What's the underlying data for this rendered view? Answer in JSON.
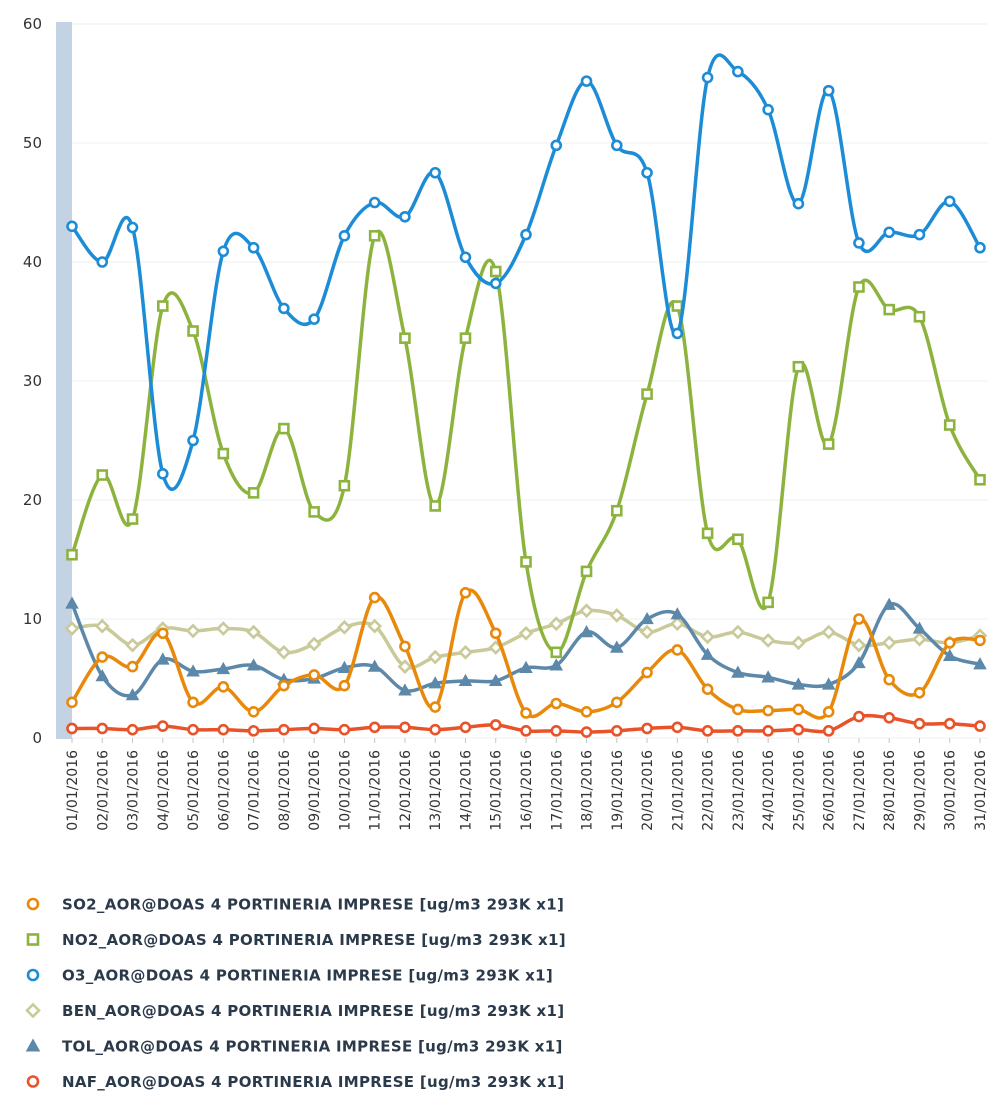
{
  "chart_data": {
    "type": "line",
    "title": "",
    "xlabel": "",
    "ylabel": "",
    "ylim": [
      0,
      60
    ],
    "yticks": [
      "0",
      "10",
      "20",
      "30",
      "40",
      "50",
      "60"
    ],
    "grid": "horizontal",
    "legend_position": "bottom",
    "categories": [
      "01/01/2016",
      "02/01/2016",
      "03/01/2016",
      "04/01/2016",
      "05/01/2016",
      "06/01/2016",
      "07/01/2016",
      "08/01/2016",
      "09/01/2016",
      "10/01/2016",
      "11/01/2016",
      "12/01/2016",
      "13/01/2016",
      "14/01/2016",
      "15/01/2016",
      "16/01/2016",
      "17/01/2016",
      "18/01/2016",
      "19/01/2016",
      "20/01/2016",
      "21/01/2016",
      "22/01/2016",
      "23/01/2016",
      "24/01/2016",
      "25/01/2016",
      "26/01/2016",
      "27/01/2016",
      "28/01/2016",
      "29/01/2016",
      "30/01/2016",
      "31/01/2016"
    ],
    "series": [
      {
        "name": "SO2_AOR@DOAS 4 PORTINERIA IMPRESE [ug/m3 293K x1]",
        "color": "#e8890c",
        "marker": "circle",
        "values": [
          3.0,
          6.8,
          6.0,
          8.8,
          3.0,
          4.3,
          2.2,
          4.4,
          5.3,
          4.4,
          11.8,
          7.7,
          2.6,
          12.2,
          8.8,
          2.1,
          2.9,
          2.2,
          3.0,
          5.5,
          7.4,
          4.1,
          2.4,
          2.3,
          2.4,
          2.2,
          10.0,
          4.9,
          3.8,
          8.0,
          8.2
        ]
      },
      {
        "name": "NO2_AOR@DOAS 4 PORTINERIA IMPRESE [ug/m3 293K x1]",
        "color": "#8db33f",
        "marker": "square",
        "values": [
          15.4,
          22.1,
          18.4,
          36.3,
          34.2,
          23.9,
          20.6,
          26.0,
          19.0,
          21.2,
          42.2,
          33.6,
          19.5,
          33.6,
          39.2,
          14.8,
          7.2,
          14.0,
          19.1,
          28.9,
          36.3,
          17.2,
          16.7,
          11.4,
          31.2,
          24.7,
          37.9,
          36.0,
          35.4,
          26.3,
          21.7
        ]
      },
      {
        "name": "O3_AOR@DOAS 4 PORTINERIA IMPRESE [ug/m3 293K x1]",
        "color": "#1d8cd6",
        "marker": "circle",
        "values": [
          43.0,
          40.0,
          42.9,
          22.2,
          25.0,
          40.9,
          41.2,
          36.1,
          35.2,
          42.2,
          45.0,
          43.8,
          47.5,
          40.4,
          38.2,
          42.3,
          49.8,
          55.2,
          49.8,
          47.5,
          34.0,
          55.5,
          56.0,
          52.8,
          44.9,
          54.4,
          41.6,
          42.5,
          42.3,
          45.1,
          41.2
        ]
      },
      {
        "name": "BEN_AOR@DOAS 4 PORTINERIA IMPRESE [ug/m3 293K x1]",
        "color": "#c9c99a",
        "marker": "diamond",
        "values": [
          9.2,
          9.4,
          7.8,
          9.2,
          9.0,
          9.2,
          8.9,
          7.2,
          7.9,
          9.3,
          9.4,
          6.0,
          6.8,
          7.2,
          7.6,
          8.8,
          9.6,
          10.7,
          10.3,
          8.9,
          9.6,
          8.5,
          8.9,
          8.2,
          8.0,
          8.9,
          7.8,
          8.0,
          8.3,
          8.0,
          8.6
        ]
      },
      {
        "name": "TOL_AOR@DOAS 4 PORTINERIA IMPRESE [ug/m3 293K x1]",
        "color": "#5c88aa",
        "marker": "triangle",
        "values": [
          11.3,
          5.2,
          3.6,
          6.6,
          5.6,
          5.8,
          6.1,
          4.9,
          5.0,
          5.9,
          6.0,
          4.0,
          4.6,
          4.8,
          4.8,
          5.9,
          6.1,
          8.9,
          7.6,
          10.0,
          10.4,
          7.0,
          5.5,
          5.1,
          4.5,
          4.5,
          6.3,
          11.2,
          9.2,
          6.9,
          6.2
        ]
      },
      {
        "name": "NAF_AOR@DOAS 4 PORTINERIA IMPRESE [ug/m3 293K x1]",
        "color": "#e8532a",
        "marker": "circle",
        "values": [
          0.8,
          0.8,
          0.7,
          1.0,
          0.7,
          0.7,
          0.6,
          0.7,
          0.8,
          0.7,
          0.9,
          0.9,
          0.7,
          0.9,
          1.1,
          0.6,
          0.6,
          0.5,
          0.6,
          0.8,
          0.9,
          0.6,
          0.6,
          0.6,
          0.7,
          0.6,
          1.8,
          1.7,
          1.2,
          1.2,
          1.0
        ]
      }
    ]
  }
}
